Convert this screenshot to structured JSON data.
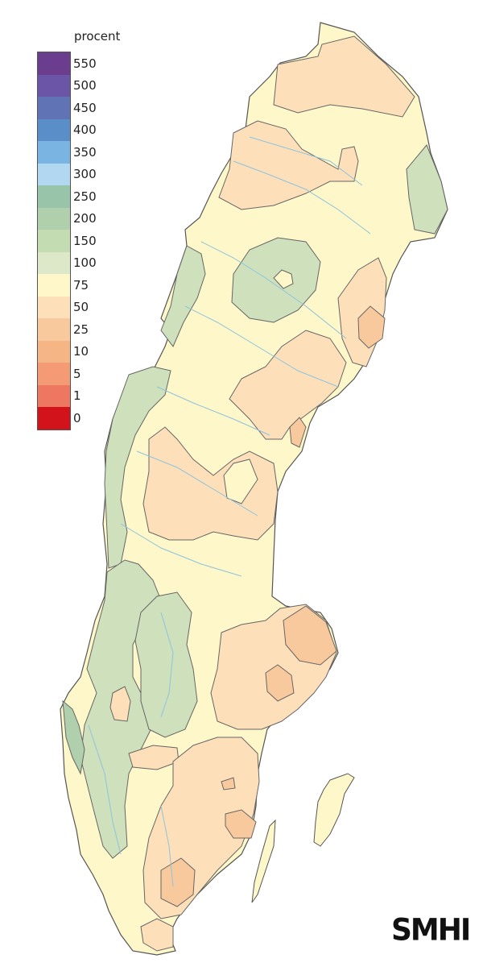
{
  "legend": {
    "title": "procent",
    "classes": [
      {
        "label": "550",
        "color": "#6a3d8f"
      },
      {
        "label": "500",
        "color": "#6a55a6"
      },
      {
        "label": "450",
        "color": "#5f73b5"
      },
      {
        "label": "400",
        "color": "#5a8ec9"
      },
      {
        "label": "350",
        "color": "#7ab4e3"
      },
      {
        "label": "300",
        "color": "#b2d7f0"
      },
      {
        "label": "250",
        "color": "#98c4a9"
      },
      {
        "label": "200",
        "color": "#b0cfac"
      },
      {
        "label": "150",
        "color": "#c4dcb2"
      },
      {
        "label": "100",
        "color": "#dce8c8"
      },
      {
        "label": "75",
        "color": "#fdf7c9"
      },
      {
        "label": "50",
        "color": "#fde0ba"
      },
      {
        "label": "25",
        "color": "#f9c99e"
      },
      {
        "label": "10",
        "color": "#f6b585"
      },
      {
        "label": "5",
        "color": "#f49b75"
      },
      {
        "label": "1",
        "color": "#ee7761"
      },
      {
        "label": "0",
        "color": "#d3131b"
      }
    ]
  },
  "map": {
    "base_color": "#fdf7c9",
    "green_zone_color": "#cfe0bd",
    "orange_zone_color": "#fde0ba",
    "deep_orange_color": "#f9c99e",
    "river_color": "#8ec3dc",
    "outline_color": "#555555"
  },
  "logo": "SMHI"
}
